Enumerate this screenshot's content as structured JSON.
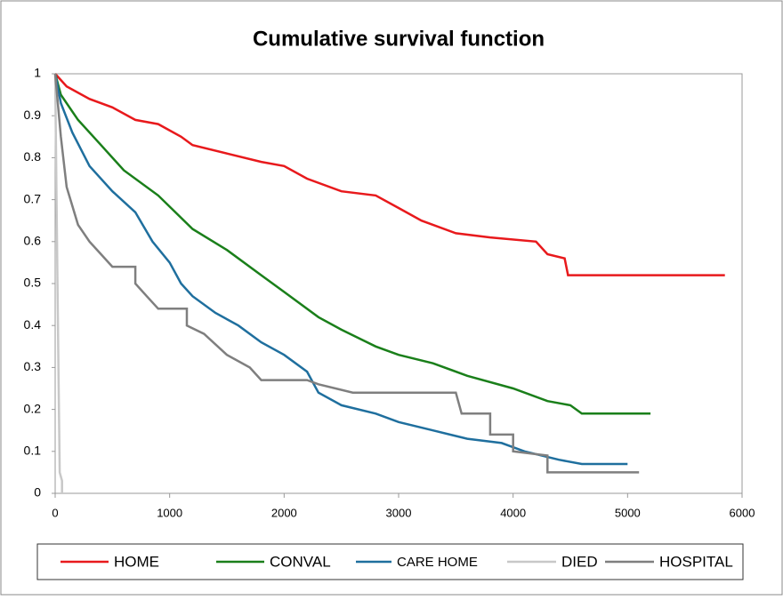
{
  "chart_data": {
    "type": "line",
    "title": "Cumulative survival function",
    "xlim": [
      0,
      6000
    ],
    "xticks": [
      0,
      1000,
      2000,
      3000,
      4000,
      5000,
      6000
    ],
    "ylim": [
      0,
      1
    ],
    "yticks": [
      0,
      0.1,
      0.2,
      0.3,
      0.4,
      0.5,
      0.6,
      0.7,
      0.8,
      0.9,
      1
    ],
    "legend": "bottom",
    "series": [
      {
        "name": "HOME",
        "color": "#e8191c",
        "x": [
          0,
          100,
          300,
          500,
          700,
          900,
          1100,
          1200,
          1500,
          1800,
          2000,
          2200,
          2500,
          2800,
          3000,
          3200,
          3500,
          3800,
          4200,
          4300,
          4450,
          4480,
          5350,
          5850
        ],
        "values": [
          1,
          0.97,
          0.94,
          0.92,
          0.89,
          0.88,
          0.85,
          0.83,
          0.81,
          0.79,
          0.78,
          0.75,
          0.72,
          0.71,
          0.68,
          0.65,
          0.62,
          0.61,
          0.6,
          0.57,
          0.56,
          0.52,
          0.52,
          0.52
        ]
      },
      {
        "name": "CONVAL",
        "color": "#1a7f1a",
        "x": [
          0,
          50,
          200,
          400,
          600,
          900,
          1200,
          1500,
          1800,
          2000,
          2300,
          2500,
          2800,
          3000,
          3300,
          3600,
          4000,
          4300,
          4500,
          4600,
          5200
        ],
        "values": [
          1,
          0.95,
          0.89,
          0.83,
          0.77,
          0.71,
          0.63,
          0.58,
          0.52,
          0.48,
          0.42,
          0.39,
          0.35,
          0.33,
          0.31,
          0.28,
          0.25,
          0.22,
          0.21,
          0.19,
          0.19
        ]
      },
      {
        "name": "CARE HOME",
        "color": "#1f6f9e",
        "x": [
          0,
          50,
          150,
          300,
          500,
          700,
          850,
          1000,
          1100,
          1200,
          1400,
          1600,
          1800,
          2000,
          2200,
          2300,
          2500,
          2800,
          3000,
          3300,
          3600,
          3900,
          4100,
          4400,
          4600,
          5000
        ],
        "values": [
          1,
          0.93,
          0.86,
          0.78,
          0.72,
          0.67,
          0.6,
          0.55,
          0.5,
          0.47,
          0.43,
          0.4,
          0.36,
          0.33,
          0.29,
          0.24,
          0.21,
          0.19,
          0.17,
          0.15,
          0.13,
          0.12,
          0.1,
          0.08,
          0.07,
          0.07
        ]
      },
      {
        "name": "DIED",
        "color": "#c8c8c8",
        "x": [
          0,
          20,
          30,
          40,
          60,
          60
        ],
        "values": [
          1,
          0.5,
          0.26,
          0.05,
          0.03,
          0
        ]
      },
      {
        "name": "HOSPITAL",
        "color": "#7f7f7f",
        "x": [
          0,
          50,
          100,
          200,
          300,
          400,
          500,
          700,
          700,
          800,
          900,
          1150,
          1150,
          1300,
          1500,
          1700,
          1800,
          2200,
          2300,
          2600,
          3500,
          3550,
          3800,
          3800,
          4000,
          4000,
          4300,
          4300,
          5100
        ],
        "values": [
          1,
          0.85,
          0.73,
          0.64,
          0.6,
          0.57,
          0.54,
          0.54,
          0.5,
          0.47,
          0.44,
          0.44,
          0.4,
          0.38,
          0.33,
          0.3,
          0.27,
          0.27,
          0.26,
          0.24,
          0.24,
          0.19,
          0.19,
          0.14,
          0.14,
          0.1,
          0.09,
          0.05,
          0.05
        ]
      }
    ]
  }
}
